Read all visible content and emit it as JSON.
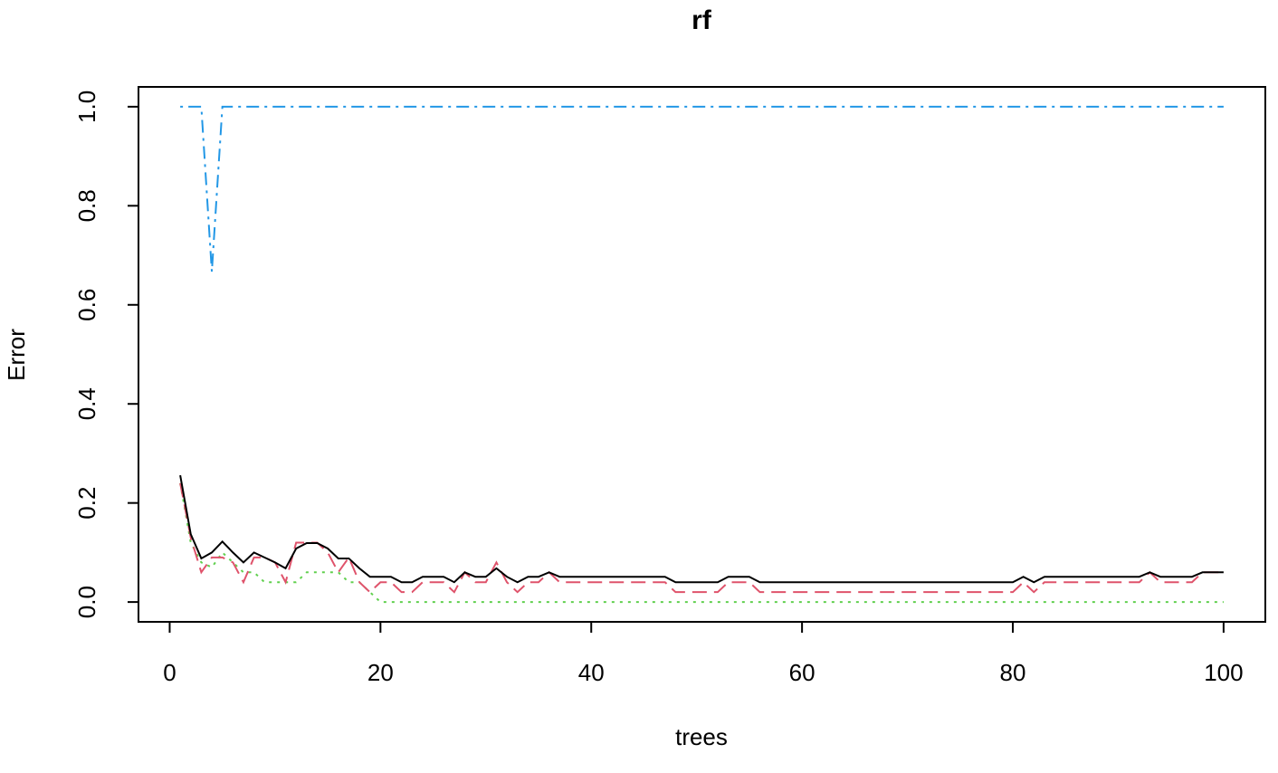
{
  "chart_data": {
    "type": "line",
    "title": "rf",
    "x_label": "trees",
    "y_label": "Error",
    "x": [
      1,
      2,
      3,
      4,
      5,
      6,
      7,
      8,
      9,
      10,
      11,
      12,
      13,
      14,
      15,
      16,
      17,
      18,
      19,
      20,
      21,
      22,
      23,
      24,
      25,
      26,
      27,
      28,
      29,
      30,
      31,
      32,
      33,
      34,
      35,
      36,
      37,
      38,
      39,
      40,
      41,
      42,
      43,
      44,
      45,
      46,
      47,
      48,
      49,
      50,
      51,
      52,
      53,
      54,
      55,
      56,
      57,
      58,
      59,
      60,
      61,
      62,
      63,
      64,
      65,
      66,
      67,
      68,
      69,
      70,
      71,
      72,
      73,
      74,
      75,
      76,
      77,
      78,
      79,
      80,
      81,
      82,
      83,
      84,
      85,
      86,
      87,
      88,
      89,
      90,
      91,
      92,
      93,
      94,
      95,
      96,
      97,
      98,
      99,
      100
    ],
    "series": [
      {
        "color": "#000000",
        "linestyle": "solid",
        "values": [
          0.256,
          0.137,
          0.088,
          0.1,
          0.122,
          0.1,
          0.08,
          0.1,
          0.09,
          0.08,
          0.068,
          0.108,
          0.119,
          0.119,
          0.108,
          0.088,
          0.088,
          0.068,
          0.051,
          0.051,
          0.051,
          0.04,
          0.04,
          0.051,
          0.051,
          0.051,
          0.04,
          0.06,
          0.051,
          0.051,
          0.068,
          0.051,
          0.04,
          0.051,
          0.051,
          0.06,
          0.051,
          0.051,
          0.051,
          0.051,
          0.051,
          0.051,
          0.051,
          0.051,
          0.051,
          0.051,
          0.051,
          0.04,
          0.04,
          0.04,
          0.04,
          0.04,
          0.051,
          0.051,
          0.051,
          0.04,
          0.04,
          0.04,
          0.04,
          0.04,
          0.04,
          0.04,
          0.04,
          0.04,
          0.04,
          0.04,
          0.04,
          0.04,
          0.04,
          0.04,
          0.04,
          0.04,
          0.04,
          0.04,
          0.04,
          0.04,
          0.04,
          0.04,
          0.04,
          0.04,
          0.051,
          0.04,
          0.051,
          0.051,
          0.051,
          0.051,
          0.051,
          0.051,
          0.051,
          0.051,
          0.051,
          0.051,
          0.06,
          0.051,
          0.051,
          0.051,
          0.051,
          0.06,
          0.06,
          0.06
        ]
      },
      {
        "color": "#DF536B",
        "linestyle": "dashed",
        "values": [
          0.24,
          0.13,
          0.06,
          0.09,
          0.09,
          0.08,
          0.04,
          0.09,
          0.09,
          0.08,
          0.04,
          0.12,
          0.12,
          0.12,
          0.1,
          0.06,
          0.09,
          0.04,
          0.02,
          0.04,
          0.04,
          0.02,
          0.02,
          0.04,
          0.04,
          0.04,
          0.02,
          0.06,
          0.04,
          0.04,
          0.08,
          0.04,
          0.02,
          0.04,
          0.04,
          0.06,
          0.04,
          0.04,
          0.04,
          0.04,
          0.04,
          0.04,
          0.04,
          0.04,
          0.04,
          0.04,
          0.04,
          0.02,
          0.02,
          0.02,
          0.02,
          0.02,
          0.04,
          0.04,
          0.04,
          0.02,
          0.02,
          0.02,
          0.02,
          0.02,
          0.02,
          0.02,
          0.02,
          0.02,
          0.02,
          0.02,
          0.02,
          0.02,
          0.02,
          0.02,
          0.02,
          0.02,
          0.02,
          0.02,
          0.02,
          0.02,
          0.02,
          0.02,
          0.02,
          0.02,
          0.04,
          0.02,
          0.04,
          0.04,
          0.04,
          0.04,
          0.04,
          0.04,
          0.04,
          0.04,
          0.04,
          0.04,
          0.06,
          0.04,
          0.04,
          0.04,
          0.04,
          0.06,
          0.06,
          0.06
        ]
      },
      {
        "color": "#61D04F",
        "linestyle": "dotted",
        "values": [
          0.24,
          0.12,
          0.08,
          0.07,
          0.1,
          0.08,
          0.06,
          0.06,
          0.04,
          0.04,
          0.04,
          0.04,
          0.06,
          0.06,
          0.06,
          0.06,
          0.04,
          0.04,
          0.02,
          0,
          0,
          0,
          0,
          0,
          0,
          0,
          0,
          0,
          0,
          0,
          0,
          0,
          0,
          0,
          0,
          0,
          0,
          0,
          0,
          0,
          0,
          0,
          0,
          0,
          0,
          0,
          0,
          0,
          0,
          0,
          0,
          0,
          0,
          0,
          0,
          0,
          0,
          0,
          0,
          0,
          0,
          0,
          0,
          0,
          0,
          0,
          0,
          0,
          0,
          0,
          0,
          0,
          0,
          0,
          0,
          0,
          0,
          0,
          0,
          0,
          0,
          0,
          0,
          0,
          0,
          0,
          0,
          0,
          0,
          0,
          0,
          0,
          0,
          0,
          0,
          0,
          0,
          0,
          0,
          0
        ]
      },
      {
        "color": "#2297E6",
        "linestyle": "dotdash",
        "values": [
          1,
          1,
          1,
          0.667,
          1,
          1,
          1,
          1,
          1,
          1,
          1,
          1,
          1,
          1,
          1,
          1,
          1,
          1,
          1,
          1,
          1,
          1,
          1,
          1,
          1,
          1,
          1,
          1,
          1,
          1,
          1,
          1,
          1,
          1,
          1,
          1,
          1,
          1,
          1,
          1,
          1,
          1,
          1,
          1,
          1,
          1,
          1,
          1,
          1,
          1,
          1,
          1,
          1,
          1,
          1,
          1,
          1,
          1,
          1,
          1,
          1,
          1,
          1,
          1,
          1,
          1,
          1,
          1,
          1,
          1,
          1,
          1,
          1,
          1,
          1,
          1,
          1,
          1,
          1,
          1,
          1,
          1,
          1,
          1,
          1,
          1,
          1,
          1,
          1,
          1,
          1,
          1,
          1,
          1,
          1,
          1,
          1,
          1,
          1,
          1
        ]
      }
    ],
    "xlim": [
      -2.96,
      103.96
    ],
    "ylim": [
      -0.04,
      1.04
    ],
    "xticks": [
      0,
      20,
      40,
      60,
      80,
      100
    ],
    "yticks": [
      {
        "value": 0,
        "label": "0.0"
      },
      0.2,
      0.4,
      0.6,
      0.8,
      {
        "value": 1,
        "label": "1.0"
      }
    ]
  }
}
